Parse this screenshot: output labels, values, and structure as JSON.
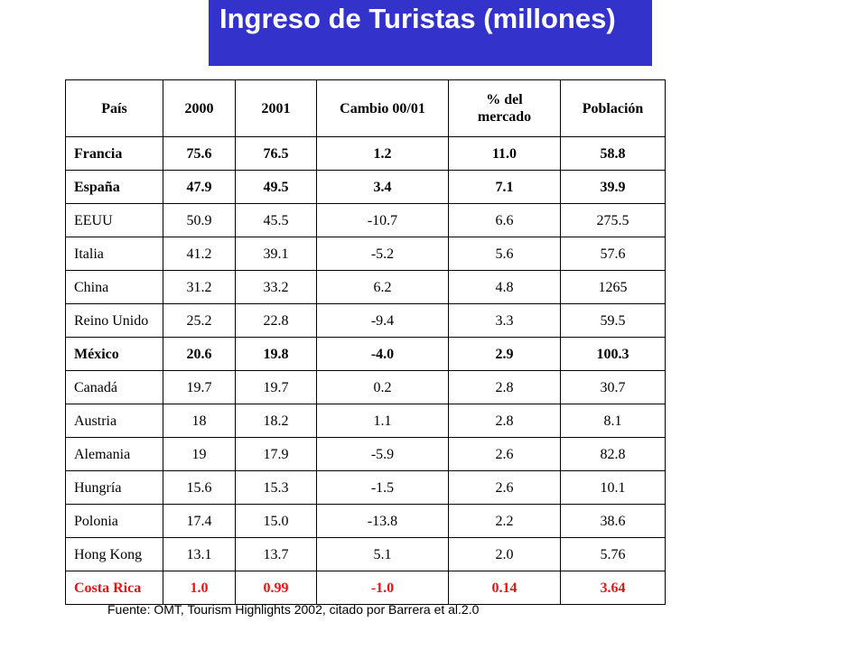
{
  "title": "Ingreso de Turistas (millones)",
  "colors": {
    "title_bg": "#3333cc",
    "highlight": "#ee1111"
  },
  "table": {
    "headers": [
      "País",
      "2000",
      "2001",
      "Cambio 00/01",
      "% del\nmercado",
      "Población"
    ],
    "rows": [
      {
        "cells": [
          "Francia",
          "75.6",
          "76.5",
          "1.2",
          "11.0",
          "58.8"
        ],
        "style": "bold"
      },
      {
        "cells": [
          "España",
          "47.9",
          "49.5",
          "3.4",
          "7.1",
          "39.9"
        ],
        "style": "bold"
      },
      {
        "cells": [
          "EEUU",
          "50.9",
          "45.5",
          "-10.7",
          "6.6",
          "275.5"
        ],
        "style": "normal"
      },
      {
        "cells": [
          "Italia",
          "41.2",
          "39.1",
          "-5.2",
          "5.6",
          "57.6"
        ],
        "style": "normal"
      },
      {
        "cells": [
          "China",
          "31.2",
          "33.2",
          "6.2",
          "4.8",
          "1265"
        ],
        "style": "normal"
      },
      {
        "cells": [
          "Reino Unido",
          "25.2",
          "22.8",
          "-9.4",
          "3.3",
          "59.5"
        ],
        "style": "normal"
      },
      {
        "cells": [
          "México",
          "20.6",
          "19.8",
          "-4.0",
          "2.9",
          "100.3"
        ],
        "style": "bold"
      },
      {
        "cells": [
          "Canadá",
          "19.7",
          "19.7",
          "0.2",
          "2.8",
          "30.7"
        ],
        "style": "normal"
      },
      {
        "cells": [
          "Austria",
          "18",
          "18.2",
          "1.1",
          "2.8",
          "8.1"
        ],
        "style": "normal"
      },
      {
        "cells": [
          "Alemania",
          "19",
          "17.9",
          "-5.9",
          "2.6",
          "82.8"
        ],
        "style": "normal"
      },
      {
        "cells": [
          "Hungría",
          "15.6",
          "15.3",
          "-1.5",
          "2.6",
          "10.1"
        ],
        "style": "normal"
      },
      {
        "cells": [
          "Polonia",
          "17.4",
          "15.0",
          "-13.8",
          "2.2",
          "38.6"
        ],
        "style": "normal"
      },
      {
        "cells": [
          "Hong Kong",
          "13.1",
          "13.7",
          "5.1",
          "2.0",
          "5.76"
        ],
        "style": "normal"
      },
      {
        "cells": [
          "Costa Rica",
          "1.0",
          "0.99",
          "-1.0",
          "0.14",
          "3.64"
        ],
        "style": "highlight"
      }
    ]
  },
  "footnote": "Fuente: OMT, Tourism Highlights 2002, citado por Barrera et al.2.0"
}
